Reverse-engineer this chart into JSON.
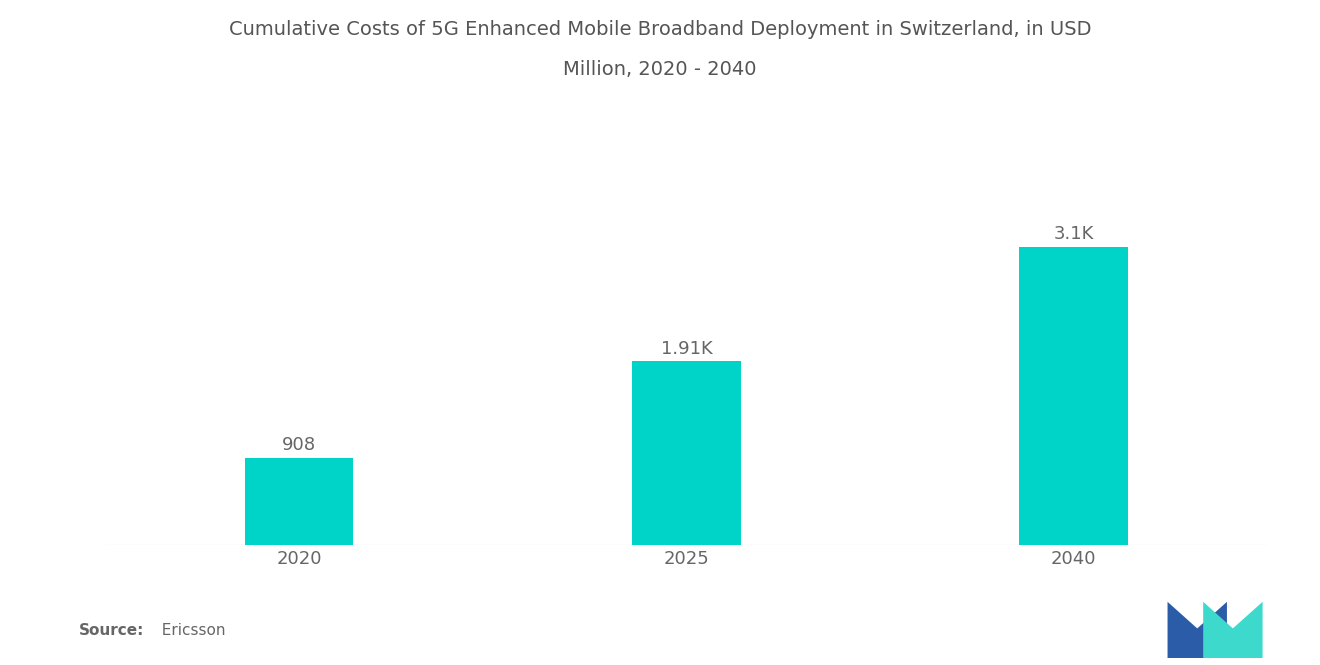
{
  "title_line1": "Cumulative Costs of 5G Enhanced Mobile Broadband Deployment in Switzerland, in USD",
  "title_line2": "Million, 2020 - 2040",
  "categories": [
    "2020",
    "2025",
    "2040"
  ],
  "values": [
    908,
    1910,
    3100
  ],
  "labels": [
    "908",
    "1.91K",
    "3.1K"
  ],
  "bar_color": "#00D4C8",
  "background_color": "#ffffff",
  "title_fontsize": 14,
  "label_fontsize": 13,
  "tick_fontsize": 13,
  "source_bold": "Source:",
  "source_normal": "  Ericsson",
  "ylim": [
    0,
    3800
  ],
  "bar_width": 0.28,
  "logo_dark_blue": "#2B5CA8",
  "logo_teal": "#3DD9CC"
}
